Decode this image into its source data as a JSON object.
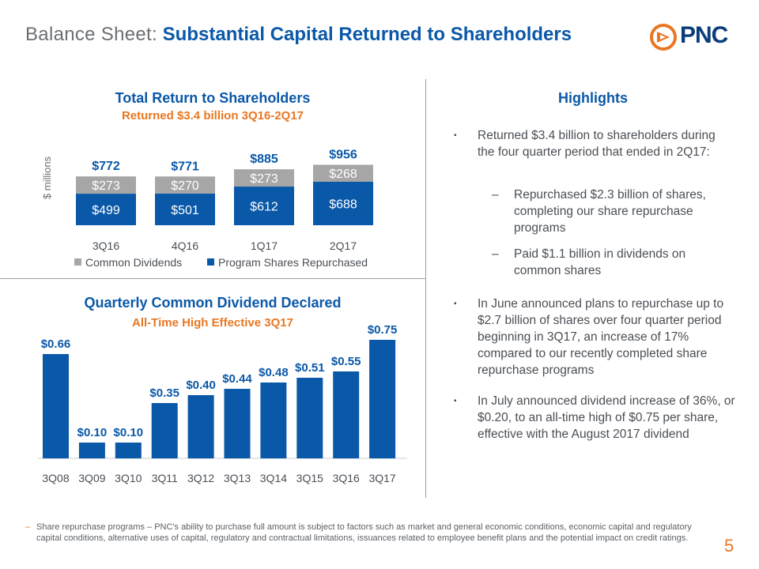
{
  "header": {
    "title_prefix": "Balance Sheet:",
    "title_main": "Substantial Capital Returned to Shareholders",
    "logo_text": "PNC"
  },
  "colors": {
    "blue": "#0a58a8",
    "gray": "#a6a6a6",
    "orange": "#e87722"
  },
  "chart_data": [
    {
      "type": "bar",
      "stacked": true,
      "title": "Total Return to Shareholders",
      "subtitle": "Returned $3.4 billion 3Q16-2Q17",
      "ylabel": "$ millions",
      "categories": [
        "3Q16",
        "4Q16",
        "1Q17",
        "2Q17"
      ],
      "series": [
        {
          "name": "Program Shares Repurchased",
          "values": [
            499,
            501,
            612,
            688
          ],
          "labels": [
            "$499",
            "$501",
            "$612",
            "$688"
          ]
        },
        {
          "name": "Common Dividends",
          "values": [
            273,
            270,
            273,
            268
          ],
          "labels": [
            "$273",
            "$270",
            "$273",
            "$268"
          ]
        }
      ],
      "totals": [
        "$772",
        "$771",
        "$885",
        "$956"
      ],
      "total_values": [
        772,
        771,
        885,
        956
      ],
      "legend": [
        "Common Dividends",
        "Program Shares Repurchased"
      ],
      "ylim": [
        0,
        1000
      ]
    },
    {
      "type": "bar",
      "title": "Quarterly Common Dividend Declared",
      "subtitle": "All-Time High Effective 3Q17",
      "categories": [
        "3Q08",
        "3Q09",
        "3Q10",
        "3Q11",
        "3Q12",
        "3Q13",
        "3Q14",
        "3Q15",
        "3Q16",
        "3Q17"
      ],
      "values": [
        0.66,
        0.1,
        0.1,
        0.35,
        0.4,
        0.44,
        0.48,
        0.51,
        0.55,
        0.75
      ],
      "labels": [
        "$0.66",
        "$0.10",
        "$0.10",
        "$0.35",
        "$0.40",
        "$0.44",
        "$0.48",
        "$0.51",
        "$0.55",
        "$0.75"
      ],
      "ylim": [
        0,
        0.8
      ]
    }
  ],
  "highlights": {
    "title": "Highlights",
    "bullet1": "Returned $3.4 billion to shareholders during the four quarter period that ended in 2Q17:",
    "sub1": "Repurchased $2.3 billion of shares, completing our share repurchase programs",
    "sub2": "Paid $1.1 billion in dividends on common shares",
    "bullet2": "In June announced plans to repurchase up to $2.7 billion of shares over four quarter period beginning in 3Q17, an increase of 17% compared to our recently completed share repurchase programs",
    "bullet3": "In July announced dividend increase of 36%, or $0.20, to an all-time high of $0.75 per share, effective with the August 2017 dividend",
    "bullet_mark": "▪",
    "dash_mark": "–"
  },
  "footnote": {
    "mark": "–",
    "text": "Share repurchase programs – PNC's ability to purchase full amount is subject to factors such as market and general economic conditions, economic capital and regulatory capital conditions, alternative uses of capital, regulatory and contractual limitations, issuances related to employee benefit plans and the potential impact on credit ratings."
  },
  "page_number": "5"
}
